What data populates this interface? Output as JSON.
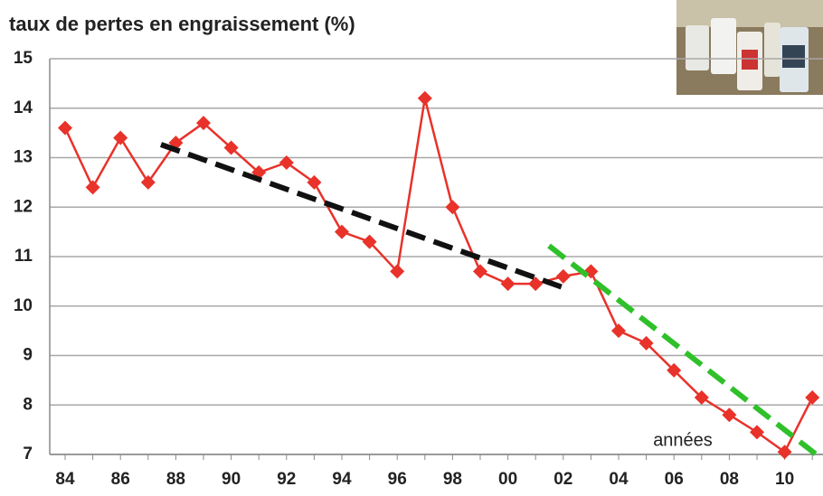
{
  "chart_data": {
    "type": "line",
    "title": "taux de pertes en engraissement (%)",
    "x_label": "années",
    "categories": [
      "84",
      null,
      "86",
      null,
      "88",
      null,
      "90",
      null,
      "92",
      null,
      "94",
      null,
      "96",
      null,
      "98",
      null,
      "00",
      null,
      "02",
      null,
      "04",
      null,
      "06",
      null,
      "08",
      null,
      "10",
      null
    ],
    "series": [
      {
        "color": "#e8322a",
        "values": [
          13.6,
          12.4,
          13.4,
          12.5,
          13.3,
          13.7,
          13.2,
          12.7,
          12.9,
          12.5,
          11.5,
          11.3,
          10.7,
          14.2,
          12.0,
          10.7,
          10.45,
          10.45,
          10.6,
          10.7,
          9.5,
          9.25,
          8.7,
          8.15,
          7.8,
          7.45,
          7.05,
          8.15
        ]
      }
    ],
    "ylim": [
      7,
      15
    ],
    "yticks": [
      7,
      8,
      9,
      10,
      11,
      12,
      13,
      14,
      15
    ],
    "grid": true
  }
}
